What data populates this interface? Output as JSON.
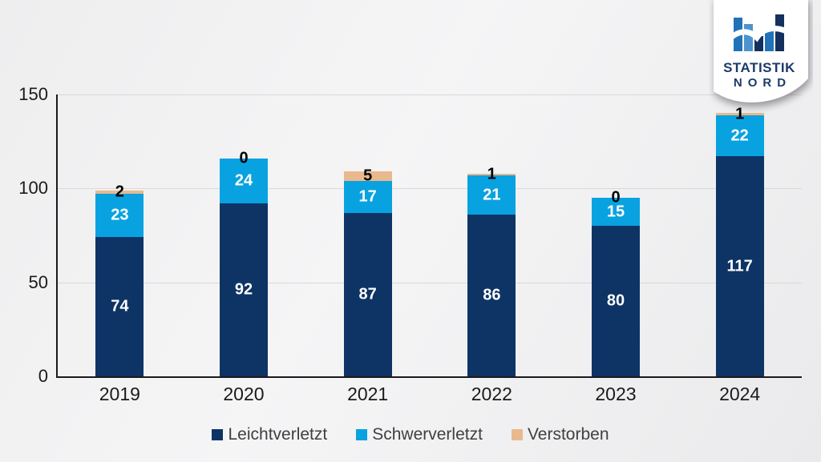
{
  "logo": {
    "line1": "STATISTIK",
    "line2": "NORD"
  },
  "chart_data": {
    "type": "bar",
    "stacked": true,
    "title": "",
    "xlabel": "",
    "ylabel": "",
    "categories": [
      "2019",
      "2020",
      "2021",
      "2022",
      "2023",
      "2024"
    ],
    "series": [
      {
        "name": "Leichtverletzt",
        "color": "#0E3465",
        "label_color": "#ffffff",
        "values": [
          74,
          92,
          87,
          86,
          80,
          117
        ]
      },
      {
        "name": "Schwerverletzt",
        "color": "#09A2E0",
        "label_color": "#ffffff",
        "values": [
          23,
          24,
          17,
          21,
          15,
          22
        ]
      },
      {
        "name": "Verstorben",
        "color": "#E9B98D",
        "label_color": "#000000",
        "values": [
          2,
          0,
          5,
          1,
          0,
          1
        ]
      }
    ],
    "totals": [
      99,
      116,
      109,
      108,
      95,
      140
    ],
    "ylim": [
      0,
      150
    ],
    "yticks": [
      0,
      50,
      100,
      150
    ],
    "grid": true,
    "legend_position": "bottom"
  },
  "colors": {
    "axis": "#1a1a1a",
    "gridline": "#d9d9d9",
    "tick_label": "#1a1a1a",
    "legend_text": "#404040",
    "logo_navy": "#1B3A6B",
    "logo_blue": "#2173B8",
    "logo_light_blue": "#4D94CE",
    "logo_dark": "#14315E"
  }
}
